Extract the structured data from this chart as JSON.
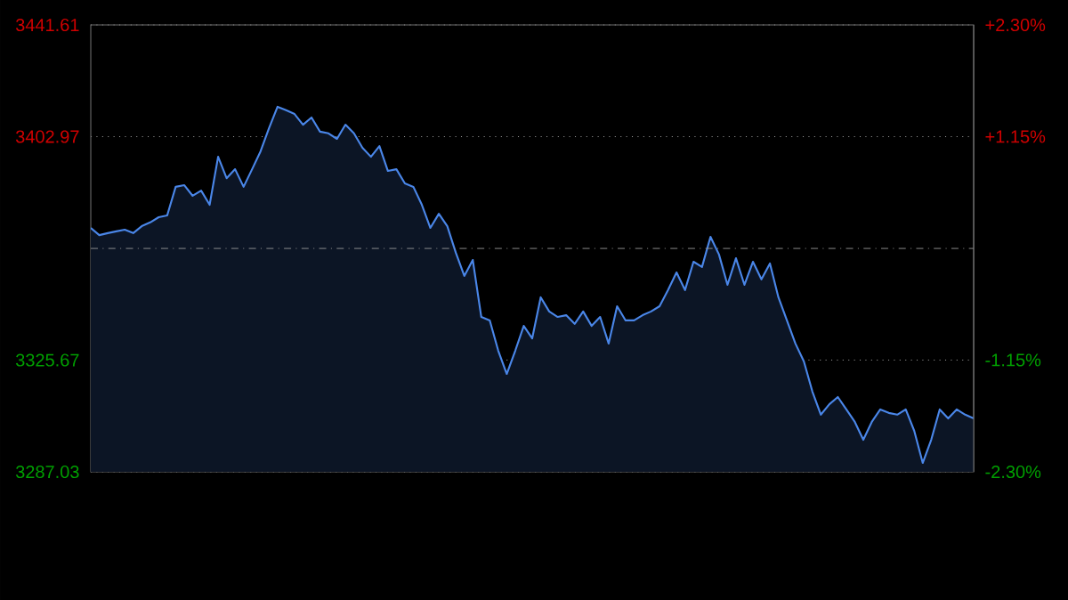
{
  "chart_data": {
    "type": "area",
    "categories": [
      null,
      null,
      null,
      null,
      null,
      null,
      null,
      null,
      null,
      null,
      null,
      null,
      null,
      null,
      null,
      null,
      null,
      null,
      null,
      null,
      null,
      null,
      null,
      null,
      null,
      null,
      null,
      null,
      null,
      null,
      null,
      null,
      null,
      null,
      null,
      null,
      null,
      null,
      null,
      null,
      null,
      null,
      null,
      null,
      null,
      null,
      null,
      null,
      null,
      null,
      null,
      null,
      null,
      null,
      null,
      null,
      null,
      null,
      null,
      null,
      null,
      null,
      null,
      null,
      null,
      null,
      null,
      null,
      null,
      null,
      null,
      null,
      null,
      null,
      null,
      null,
      null,
      null,
      null,
      null,
      null,
      null,
      null,
      null,
      null,
      null,
      null,
      null,
      null,
      null,
      null,
      null,
      null,
      null,
      null,
      null,
      null,
      null,
      null,
      null,
      null,
      null,
      null,
      null,
      null
    ],
    "series": [
      {
        "color": "#4a86e8",
        "values": [
          3371.4,
          3368.9,
          3369.6,
          3370.2,
          3370.8,
          3369.6,
          3372.0,
          3373.3,
          3375.1,
          3375.7,
          3385.6,
          3386.2,
          3382.5,
          3384.3,
          3379.4,
          3396.0,
          3388.6,
          3391.7,
          3385.6,
          3391.7,
          3397.9,
          3405.9,
          3413.3,
          3412.1,
          3410.8,
          3407.1,
          3409.6,
          3404.7,
          3404.1,
          3402.2,
          3407.1,
          3404.1,
          3399.1,
          3396.0,
          3399.7,
          3391.1,
          3391.7,
          3386.8,
          3385.6,
          3379.4,
          3371.4,
          3376.3,
          3372.0,
          3362.8,
          3354.8,
          3360.3,
          3340.6,
          3339.4,
          3328.9,
          3320.9,
          3328.9,
          3337.5,
          3333.2,
          3347.4,
          3342.5,
          3340.6,
          3341.2,
          3338.2,
          3342.5,
          3337.5,
          3340.6,
          3331.4,
          3344.3,
          3339.4,
          3339.4,
          3341.2,
          3342.5,
          3344.3,
          3349.9,
          3356.0,
          3349.9,
          3359.7,
          3357.9,
          3368.3,
          3362.2,
          3351.7,
          3360.9,
          3351.7,
          3359.7,
          3353.6,
          3359.1,
          3347.4,
          3339.4,
          3331.4,
          3325.2,
          3314.8,
          3306.8,
          3310.4,
          3312.9,
          3308.6,
          3304.3,
          3298.1,
          3304.3,
          3308.6,
          3307.4,
          3306.8,
          3308.6,
          3301.2,
          3290.1,
          3298.1,
          3308.6,
          3305.5,
          3308.6,
          3306.8,
          3305.5
        ]
      }
    ],
    "ylim": [
      3287.03,
      3441.61
    ],
    "yticks": [
      3287.03,
      3325.67,
      3402.97,
      3441.61
    ],
    "y2lim": [
      -2.3,
      2.3
    ],
    "y2ticks": [
      {
        "value": -2.3,
        "label": "-2.30%"
      },
      {
        "value": -1.15,
        "label": "-1.15%"
      },
      {
        "value": 1.15,
        "label": "+1.15%"
      },
      {
        "value": 2.3,
        "label": "+2.30%"
      }
    ],
    "grid": "y",
    "ref_lines": [
      {
        "axis": "y",
        "value": 3364.32,
        "line_style": "dashed"
      }
    ]
  }
}
